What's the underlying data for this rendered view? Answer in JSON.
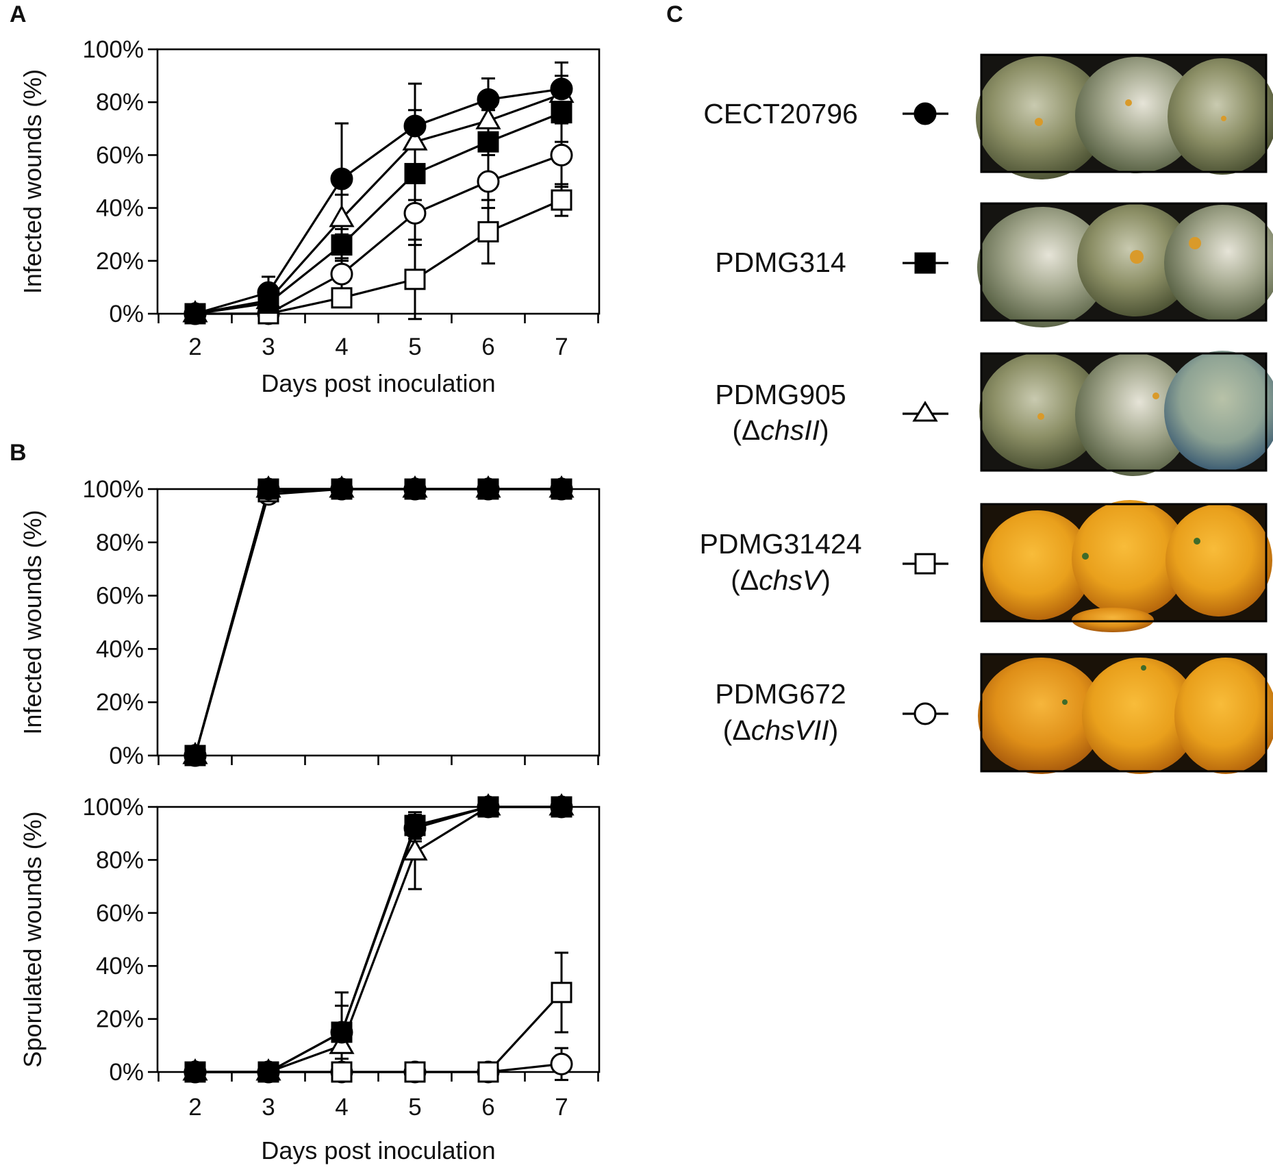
{
  "figure": {
    "panel_labels": [
      "A",
      "B",
      "C"
    ]
  },
  "colors": {
    "ink": "#000000",
    "fill_open": "#ffffff",
    "fill_closed": "#000000"
  },
  "chart_data": [
    {
      "id": "A",
      "type": "line",
      "xlabel": "Days post inoculation",
      "ylabel": "Infected wounds (%)",
      "x": [
        2,
        3,
        4,
        5,
        6,
        7
      ],
      "x_tick_labels": [
        "2",
        "3",
        "4",
        "5",
        "6",
        "7"
      ],
      "y_ticks": [
        0,
        20,
        40,
        60,
        80,
        100
      ],
      "y_tick_labels": [
        "0%",
        "20%",
        "40%",
        "60%",
        "80%",
        "100%"
      ],
      "ylim": [
        0,
        100
      ],
      "series": [
        {
          "name": "CECT20796",
          "marker": "circle-filled",
          "values": [
            0,
            8,
            51,
            71,
            81,
            85
          ],
          "errors": [
            0,
            6,
            21,
            16,
            8,
            10
          ]
        },
        {
          "name": "PDMG314",
          "marker": "square-filled",
          "values": [
            0,
            4,
            26,
            53,
            65,
            76
          ],
          "errors": [
            0,
            5,
            6,
            10,
            12,
            11
          ]
        },
        {
          "name": "PDMG905",
          "marker": "triangle-open",
          "values": [
            0,
            5,
            36,
            65,
            73,
            83
          ],
          "errors": [
            0,
            5,
            9,
            12,
            9,
            7
          ]
        },
        {
          "name": "PDMG31424",
          "marker": "square-open",
          "values": [
            0,
            0,
            6,
            13,
            31,
            43
          ],
          "errors": [
            0,
            0,
            3,
            15,
            12,
            6
          ]
        },
        {
          "name": "PDMG672",
          "marker": "circle-open",
          "values": [
            0,
            0,
            15,
            38,
            50,
            60
          ],
          "errors": [
            0,
            0,
            6,
            12,
            10,
            12
          ]
        }
      ]
    },
    {
      "id": "B-top",
      "type": "line",
      "xlabel": "",
      "ylabel": "Infected wounds (%)",
      "x": [
        2,
        3,
        4,
        5,
        6,
        7
      ],
      "y_ticks": [
        0,
        20,
        40,
        60,
        80,
        100
      ],
      "y_tick_labels": [
        "0%",
        "20%",
        "40%",
        "60%",
        "80%",
        "100%"
      ],
      "ylim": [
        0,
        100
      ],
      "series": [
        {
          "name": "CECT20796",
          "marker": "circle-filled",
          "values": [
            0,
            100,
            100,
            100,
            100,
            100
          ],
          "errors": [
            3,
            3,
            3,
            3,
            3,
            3
          ]
        },
        {
          "name": "PDMG314",
          "marker": "square-filled",
          "values": [
            0,
            100,
            100,
            100,
            100,
            100
          ],
          "errors": [
            3,
            3,
            3,
            3,
            3,
            3
          ]
        },
        {
          "name": "PDMG905",
          "marker": "triangle-open",
          "values": [
            0,
            100,
            100,
            100,
            100,
            100
          ],
          "errors": [
            3,
            3,
            3,
            3,
            3,
            3
          ]
        },
        {
          "name": "PDMG31424",
          "marker": "square-open",
          "values": [
            0,
            99,
            100,
            100,
            100,
            100
          ],
          "errors": [
            3,
            3,
            3,
            3,
            3,
            3
          ]
        },
        {
          "name": "PDMG672",
          "marker": "circle-open",
          "values": [
            0,
            98,
            100,
            100,
            100,
            100
          ],
          "errors": [
            3,
            3,
            3,
            3,
            3,
            3
          ]
        }
      ]
    },
    {
      "id": "B-bottom",
      "type": "line",
      "xlabel": "Days post inoculation",
      "ylabel": "Sporulated wounds (%)",
      "x": [
        2,
        3,
        4,
        5,
        6,
        7
      ],
      "x_tick_labels": [
        "2",
        "3",
        "4",
        "5",
        "6",
        "7"
      ],
      "y_ticks": [
        0,
        20,
        40,
        60,
        80,
        100
      ],
      "y_tick_labels": [
        "0%",
        "20%",
        "40%",
        "60%",
        "80%",
        "100%"
      ],
      "ylim": [
        0,
        100
      ],
      "series": [
        {
          "name": "CECT20796",
          "marker": "circle-filled",
          "values": [
            0,
            0,
            15,
            92,
            100,
            100
          ],
          "errors": [
            0,
            0,
            15,
            5,
            0,
            0
          ]
        },
        {
          "name": "PDMG314",
          "marker": "square-filled",
          "values": [
            0,
            0,
            15,
            93,
            100,
            100
          ],
          "errors": [
            0,
            0,
            10,
            5,
            0,
            0
          ]
        },
        {
          "name": "PDMG905",
          "marker": "triangle-open",
          "values": [
            0,
            0,
            10,
            83,
            100,
            100
          ],
          "errors": [
            0,
            0,
            8,
            14,
            0,
            0
          ]
        },
        {
          "name": "PDMG31424",
          "marker": "square-open",
          "values": [
            0,
            0,
            0,
            0,
            0,
            30
          ],
          "errors": [
            0,
            0,
            0,
            0,
            0,
            15
          ]
        },
        {
          "name": "PDMG672",
          "marker": "circle-open",
          "values": [
            0,
            0,
            0,
            0,
            0,
            3
          ],
          "errors": [
            0,
            0,
            0,
            0,
            0,
            6
          ]
        }
      ]
    }
  ],
  "legend": [
    {
      "line1": "CECT20796",
      "line2_prefix": "",
      "line2_gene": "",
      "line2_suffix": "",
      "marker": "circle-filled",
      "photo": "green-mold"
    },
    {
      "line1": "PDMG314",
      "line2_prefix": "",
      "line2_gene": "",
      "line2_suffix": "",
      "marker": "square-filled",
      "photo": "green-mold-heavy"
    },
    {
      "line1": "PDMG905",
      "line2_prefix": "(Δ",
      "line2_gene": "chsII",
      "line2_suffix": ")",
      "marker": "triangle-open",
      "photo": "green-mold-white"
    },
    {
      "line1": "PDMG31424",
      "line2_prefix": "(Δ",
      "line2_gene": "chsV",
      "line2_suffix": ")",
      "marker": "square-open",
      "photo": "orange-clean"
    },
    {
      "line1": "PDMG672",
      "line2_prefix": "(Δ",
      "line2_gene": "chsVII",
      "line2_suffix": ")",
      "marker": "circle-open",
      "photo": "orange-clean-2"
    }
  ]
}
